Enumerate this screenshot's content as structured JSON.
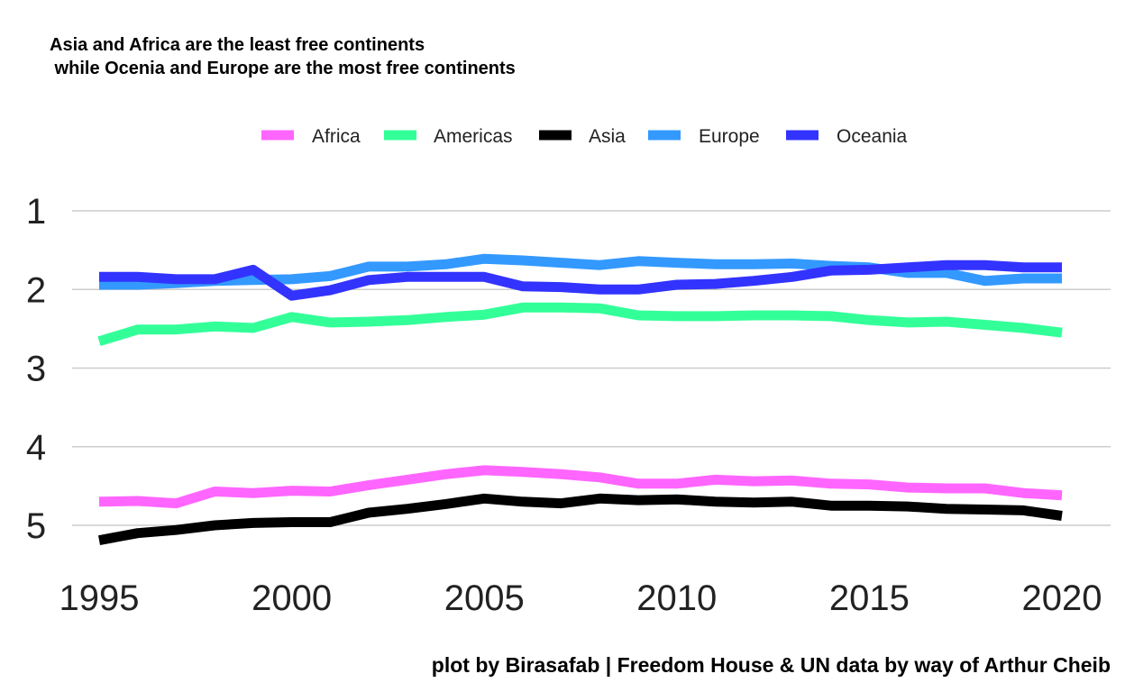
{
  "chart_data": {
    "type": "line",
    "title": "Asia and Africa are the least free continents\n while Ocenia and Europe are the most free continents",
    "caption": "plot by Birasafab | Freedom House & UN data by way of Arthur Cheib",
    "xlabel": "",
    "ylabel": "",
    "y_reversed": true,
    "xlim": [
      1995,
      2020
    ],
    "ylim": [
      1,
      5
    ],
    "x_ticks": [
      1995,
      2000,
      2005,
      2010,
      2015,
      2020
    ],
    "y_ticks": [
      1,
      2,
      3,
      4,
      5
    ],
    "grid": "horizontal",
    "legend_position": "top",
    "x": [
      1995,
      1996,
      1997,
      1998,
      1999,
      2000,
      2001,
      2002,
      2003,
      2004,
      2005,
      2006,
      2007,
      2008,
      2009,
      2010,
      2011,
      2012,
      2013,
      2014,
      2015,
      2016,
      2017,
      2018,
      2019,
      2020
    ],
    "series": [
      {
        "name": "Africa",
        "color": "#ff66ff",
        "values": [
          4.7,
          4.69,
          4.72,
          4.57,
          4.59,
          4.56,
          4.57,
          4.49,
          4.42,
          4.35,
          4.3,
          4.32,
          4.35,
          4.39,
          4.47,
          4.47,
          4.42,
          4.44,
          4.43,
          4.47,
          4.48,
          4.52,
          4.53,
          4.53,
          4.59,
          4.62
        ]
      },
      {
        "name": "Americas",
        "color": "#33ff99",
        "values": [
          2.66,
          2.51,
          2.51,
          2.47,
          2.49,
          2.35,
          2.42,
          2.41,
          2.39,
          2.35,
          2.32,
          2.23,
          2.23,
          2.24,
          2.33,
          2.34,
          2.34,
          2.33,
          2.33,
          2.34,
          2.39,
          2.42,
          2.41,
          2.45,
          2.49,
          2.55
        ]
      },
      {
        "name": "Asia",
        "color": "#000000",
        "values": [
          5.19,
          5.1,
          5.06,
          5.0,
          4.97,
          4.96,
          4.96,
          4.84,
          4.79,
          4.73,
          4.66,
          4.7,
          4.72,
          4.66,
          4.68,
          4.67,
          4.7,
          4.71,
          4.7,
          4.75,
          4.75,
          4.76,
          4.79,
          4.8,
          4.81,
          4.88
        ]
      },
      {
        "name": "Europe",
        "color": "#3399ff",
        "values": [
          1.94,
          1.94,
          1.92,
          1.89,
          1.88,
          1.87,
          1.83,
          1.71,
          1.71,
          1.68,
          1.61,
          1.63,
          1.66,
          1.69,
          1.64,
          1.66,
          1.68,
          1.68,
          1.67,
          1.7,
          1.72,
          1.79,
          1.79,
          1.89,
          1.86,
          1.86
        ]
      },
      {
        "name": "Oceania",
        "color": "#3333ff",
        "values": [
          1.84,
          1.84,
          1.87,
          1.87,
          1.75,
          2.08,
          2.01,
          1.88,
          1.84,
          1.84,
          1.84,
          1.96,
          1.97,
          2.0,
          2.0,
          1.94,
          1.93,
          1.89,
          1.84,
          1.76,
          1.75,
          1.72,
          1.69,
          1.69,
          1.72,
          1.72
        ]
      }
    ]
  }
}
